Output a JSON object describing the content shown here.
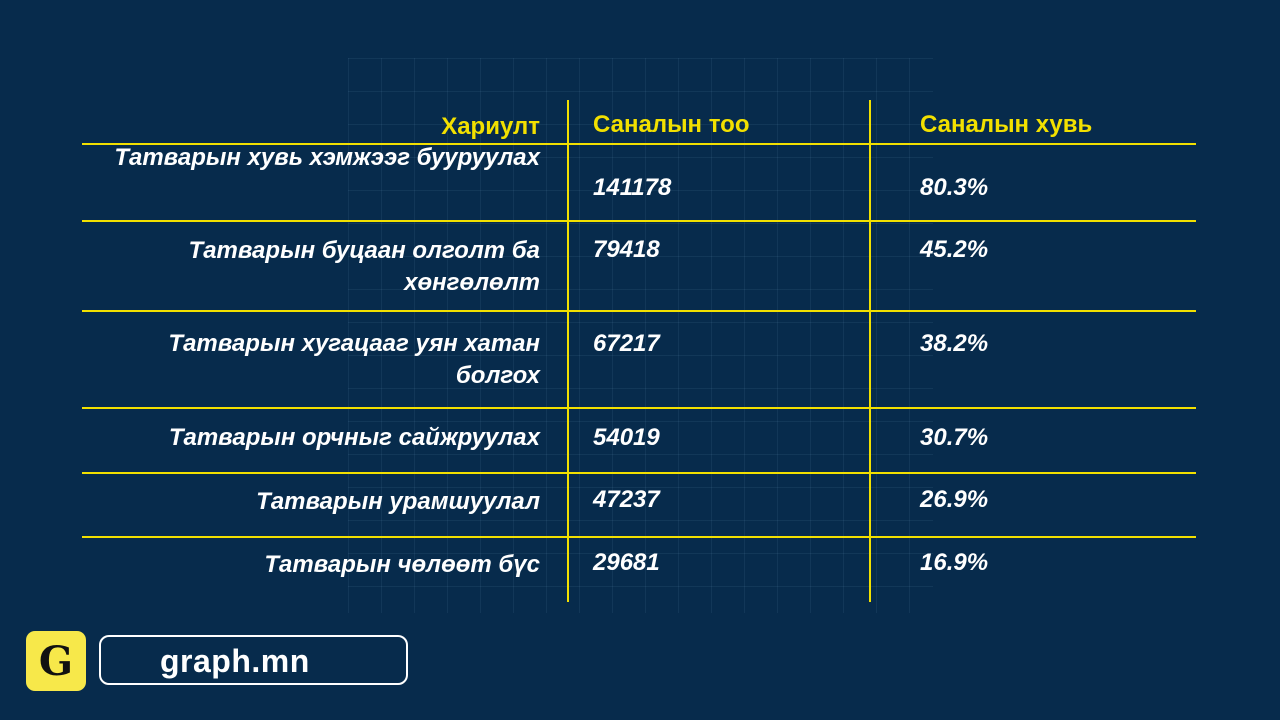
{
  "chart_data": {
    "type": "table",
    "columns": [
      "Хариулт",
      "Саналын тоо",
      "Саналын хувь"
    ],
    "rows": [
      {
        "answer": "Татварын хувь хэмжээг бууруулах",
        "count": "141178",
        "percent": "80.3%"
      },
      {
        "answer": "Татварын буцаан олголт ба хөнгөлөлт",
        "count": "79418",
        "percent": "45.2%"
      },
      {
        "answer": "Татварын хугацааг уян хатан болгох",
        "count": "67217",
        "percent": "38.2%"
      },
      {
        "answer": "Татварын орчныг сайжруулах",
        "count": "54019",
        "percent": "30.7%"
      },
      {
        "answer": "Татварын урамшуулал",
        "count": "47237",
        "percent": "26.9%"
      },
      {
        "answer": "Татварын чөлөөт бүс",
        "count": "29681",
        "percent": "16.9%"
      }
    ]
  },
  "branding": {
    "logo_letter": "G",
    "site": "graph.mn"
  },
  "colors": {
    "background": "#072b4c",
    "accent": "#f2e000",
    "text": "#ffffff"
  }
}
